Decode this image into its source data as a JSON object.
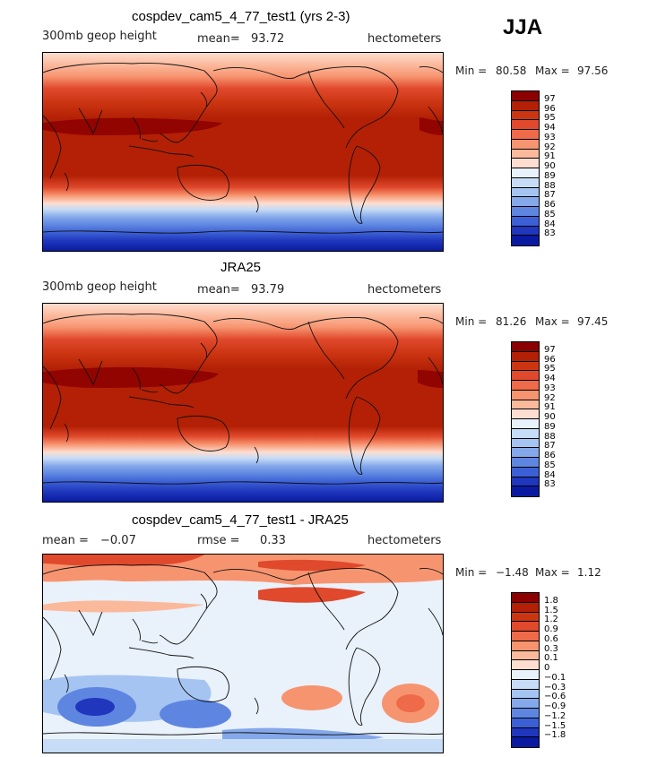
{
  "season": "JJA",
  "panels": [
    {
      "title": "cospdev_cam5_4_77_test1 (yrs 2-3)",
      "left_label": "300mb geop height",
      "stat_label": "mean=",
      "stat_value": "93.72",
      "units": "hectometers",
      "min_label": "Min =",
      "min_value": "80.58",
      "max_label": "Max =",
      "max_value": "97.56",
      "colorbar": {
        "labels": [
          "97",
          "96",
          "95",
          "94",
          "93",
          "92",
          "91",
          "90",
          "89",
          "88",
          "87",
          "86",
          "85",
          "84",
          "83"
        ],
        "colors": [
          "#8b0000",
          "#b32005",
          "#cc3512",
          "#e0492c",
          "#ef6a48",
          "#f79470",
          "#fbb99c",
          "#fdddd0",
          "#e9f1fb",
          "#c7dcf6",
          "#a5c4f2",
          "#84a8ea",
          "#5e86e1",
          "#3b5fd4",
          "#1f36bd",
          "#0a1aa0"
        ]
      }
    },
    {
      "title": "JRA25",
      "left_label": "300mb geop height",
      "stat_label": "mean=",
      "stat_value": "93.79",
      "units": "hectometers",
      "min_label": "Min =",
      "min_value": "81.26",
      "max_label": "Max =",
      "max_value": "97.45",
      "colorbar": {
        "labels": [
          "97",
          "96",
          "95",
          "94",
          "93",
          "92",
          "91",
          "90",
          "89",
          "88",
          "87",
          "86",
          "85",
          "84",
          "83"
        ],
        "colors": [
          "#8b0000",
          "#b32005",
          "#cc3512",
          "#e0492c",
          "#ef6a48",
          "#f79470",
          "#fbb99c",
          "#fdddd0",
          "#e9f1fb",
          "#c7dcf6",
          "#a5c4f2",
          "#84a8ea",
          "#5e86e1",
          "#3b5fd4",
          "#1f36bd",
          "#0a1aa0"
        ]
      }
    },
    {
      "title": "cospdev_cam5_4_77_test1 - JRA25",
      "left_label": "mean =",
      "left_value": "-0.07",
      "stat_label": "rmse =",
      "stat_value": "0.33",
      "units": "hectometers",
      "min_label": "Min =",
      "min_value": "-1.48",
      "max_label": "Max =",
      "max_value": "1.12",
      "colorbar": {
        "labels": [
          "1.8",
          "1.5",
          "1.2",
          "0.9",
          "0.6",
          "0.3",
          "0.1",
          "0",
          "-0.1",
          "-0.3",
          "-0.6",
          "-0.9",
          "-1.2",
          "-1.5",
          "-1.8"
        ],
        "colors": [
          "#8b0000",
          "#b32005",
          "#cc3512",
          "#e0492c",
          "#ef6a48",
          "#f79470",
          "#fbb99c",
          "#fdddd0",
          "#e9f1fb",
          "#c7dcf6",
          "#a5c4f2",
          "#84a8ea",
          "#5e86e1",
          "#3b5fd4",
          "#1f36bd",
          "#0a1aa0"
        ]
      }
    }
  ]
}
